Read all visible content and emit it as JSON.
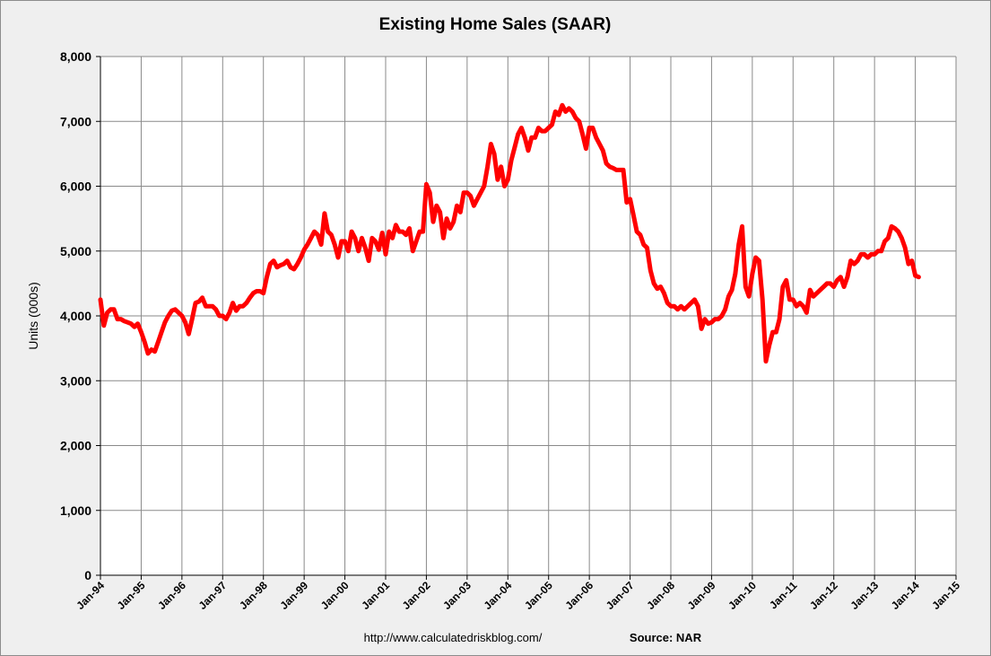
{
  "chart_data": {
    "type": "line",
    "title": "Existing Home Sales (SAAR)",
    "ylabel": "Units (000s)",
    "xlabel": "",
    "ylim": [
      0,
      8000
    ],
    "xlim": [
      "1994-01",
      "2015-01"
    ],
    "y_ticks": [
      "0",
      "1,000",
      "2,000",
      "3,000",
      "4,000",
      "5,000",
      "6,000",
      "7,000",
      "8,000"
    ],
    "x_ticks": [
      "Jan-94",
      "Jan-95",
      "Jan-96",
      "Jan-97",
      "Jan-98",
      "Jan-99",
      "Jan-00",
      "Jan-01",
      "Jan-02",
      "Jan-03",
      "Jan-04",
      "Jan-05",
      "Jan-06",
      "Jan-07",
      "Jan-08",
      "Jan-09",
      "Jan-10",
      "Jan-11",
      "Jan-12",
      "Jan-13",
      "Jan-14",
      "Jan-15"
    ],
    "grid": true,
    "line_color": "#ff0000",
    "series": [
      {
        "points": [
          [
            "1994-01",
            4250
          ],
          [
            "1994-02",
            3850
          ],
          [
            "1994-03",
            4050
          ],
          [
            "1994-04",
            4100
          ],
          [
            "1994-05",
            4100
          ],
          [
            "1994-06",
            3950
          ],
          [
            "1994-07",
            3950
          ],
          [
            "1994-08",
            3920
          ],
          [
            "1994-09",
            3900
          ],
          [
            "1994-10",
            3880
          ],
          [
            "1994-11",
            3830
          ],
          [
            "1994-12",
            3880
          ],
          [
            "1995-01",
            3750
          ],
          [
            "1995-02",
            3600
          ],
          [
            "1995-03",
            3420
          ],
          [
            "1995-04",
            3480
          ],
          [
            "1995-05",
            3450
          ],
          [
            "1995-06",
            3600
          ],
          [
            "1995-07",
            3750
          ],
          [
            "1995-08",
            3900
          ],
          [
            "1995-09",
            4000
          ],
          [
            "1995-10",
            4080
          ],
          [
            "1995-11",
            4100
          ],
          [
            "1995-12",
            4050
          ],
          [
            "1996-01",
            4000
          ],
          [
            "1996-02",
            3900
          ],
          [
            "1996-03",
            3720
          ],
          [
            "1996-04",
            3950
          ],
          [
            "1996-05",
            4200
          ],
          [
            "1996-06",
            4220
          ],
          [
            "1996-07",
            4280
          ],
          [
            "1996-08",
            4150
          ],
          [
            "1996-09",
            4150
          ],
          [
            "1996-10",
            4150
          ],
          [
            "1996-11",
            4100
          ],
          [
            "1996-12",
            4000
          ],
          [
            "1997-01",
            4000
          ],
          [
            "1997-02",
            3950
          ],
          [
            "1997-03",
            4050
          ],
          [
            "1997-04",
            4200
          ],
          [
            "1997-05",
            4080
          ],
          [
            "1997-06",
            4150
          ],
          [
            "1997-07",
            4150
          ],
          [
            "1997-08",
            4200
          ],
          [
            "1997-09",
            4280
          ],
          [
            "1997-10",
            4350
          ],
          [
            "1997-11",
            4380
          ],
          [
            "1997-12",
            4380
          ],
          [
            "1998-01",
            4350
          ],
          [
            "1998-02",
            4600
          ],
          [
            "1998-03",
            4800
          ],
          [
            "1998-04",
            4850
          ],
          [
            "1998-05",
            4750
          ],
          [
            "1998-06",
            4780
          ],
          [
            "1998-07",
            4800
          ],
          [
            "1998-08",
            4850
          ],
          [
            "1998-09",
            4750
          ],
          [
            "1998-10",
            4720
          ],
          [
            "1998-11",
            4800
          ],
          [
            "1998-12",
            4900
          ],
          [
            "1999-01",
            5020
          ],
          [
            "1999-02",
            5100
          ],
          [
            "1999-03",
            5200
          ],
          [
            "1999-04",
            5300
          ],
          [
            "1999-05",
            5250
          ],
          [
            "1999-06",
            5100
          ],
          [
            "1999-07",
            5580
          ],
          [
            "1999-08",
            5300
          ],
          [
            "1999-09",
            5250
          ],
          [
            "1999-10",
            5100
          ],
          [
            "1999-11",
            4900
          ],
          [
            "1999-12",
            5150
          ],
          [
            "2000-01",
            5150
          ],
          [
            "2000-02",
            5000
          ],
          [
            "2000-03",
            5300
          ],
          [
            "2000-04",
            5200
          ],
          [
            "2000-05",
            5000
          ],
          [
            "2000-06",
            5200
          ],
          [
            "2000-07",
            5050
          ],
          [
            "2000-08",
            4850
          ],
          [
            "2000-09",
            5200
          ],
          [
            "2000-10",
            5150
          ],
          [
            "2000-11",
            5020
          ],
          [
            "2000-12",
            5280
          ],
          [
            "2001-01",
            4950
          ],
          [
            "2001-02",
            5300
          ],
          [
            "2001-03",
            5200
          ],
          [
            "2001-04",
            5400
          ],
          [
            "2001-05",
            5300
          ],
          [
            "2001-06",
            5300
          ],
          [
            "2001-07",
            5250
          ],
          [
            "2001-08",
            5350
          ],
          [
            "2001-09",
            5000
          ],
          [
            "2001-10",
            5150
          ],
          [
            "2001-11",
            5300
          ],
          [
            "2001-12",
            5300
          ],
          [
            "2002-01",
            6030
          ],
          [
            "2002-02",
            5900
          ],
          [
            "2002-03",
            5450
          ],
          [
            "2002-04",
            5700
          ],
          [
            "2002-05",
            5600
          ],
          [
            "2002-06",
            5200
          ],
          [
            "2002-07",
            5500
          ],
          [
            "2002-08",
            5350
          ],
          [
            "2002-09",
            5450
          ],
          [
            "2002-10",
            5700
          ],
          [
            "2002-11",
            5600
          ],
          [
            "2002-12",
            5900
          ],
          [
            "2003-01",
            5900
          ],
          [
            "2003-02",
            5850
          ],
          [
            "2003-03",
            5700
          ],
          [
            "2003-04",
            5800
          ],
          [
            "2003-05",
            5900
          ],
          [
            "2003-06",
            6000
          ],
          [
            "2003-07",
            6300
          ],
          [
            "2003-08",
            6650
          ],
          [
            "2003-09",
            6500
          ],
          [
            "2003-10",
            6100
          ],
          [
            "2003-11",
            6300
          ],
          [
            "2003-12",
            6000
          ],
          [
            "2004-01",
            6100
          ],
          [
            "2004-02",
            6400
          ],
          [
            "2004-03",
            6600
          ],
          [
            "2004-04",
            6800
          ],
          [
            "2004-05",
            6900
          ],
          [
            "2004-06",
            6750
          ],
          [
            "2004-07",
            6550
          ],
          [
            "2004-08",
            6750
          ],
          [
            "2004-09",
            6750
          ],
          [
            "2004-10",
            6900
          ],
          [
            "2004-11",
            6850
          ],
          [
            "2004-12",
            6850
          ],
          [
            "2005-01",
            6900
          ],
          [
            "2005-02",
            6950
          ],
          [
            "2005-03",
            7150
          ],
          [
            "2005-04",
            7100
          ],
          [
            "2005-05",
            7250
          ],
          [
            "2005-06",
            7150
          ],
          [
            "2005-07",
            7200
          ],
          [
            "2005-08",
            7150
          ],
          [
            "2005-09",
            7050
          ],
          [
            "2005-10",
            7000
          ],
          [
            "2005-11",
            6800
          ],
          [
            "2005-12",
            6580
          ],
          [
            "2006-01",
            6900
          ],
          [
            "2006-02",
            6900
          ],
          [
            "2006-03",
            6750
          ],
          [
            "2006-04",
            6650
          ],
          [
            "2006-05",
            6550
          ],
          [
            "2006-06",
            6350
          ],
          [
            "2006-07",
            6300
          ],
          [
            "2006-08",
            6280
          ],
          [
            "2006-09",
            6250
          ],
          [
            "2006-10",
            6250
          ],
          [
            "2006-11",
            6250
          ],
          [
            "2006-12",
            5750
          ],
          [
            "2007-01",
            5800
          ],
          [
            "2007-02",
            5550
          ],
          [
            "2007-03",
            5300
          ],
          [
            "2007-04",
            5250
          ],
          [
            "2007-05",
            5100
          ],
          [
            "2007-06",
            5050
          ],
          [
            "2007-07",
            4700
          ],
          [
            "2007-08",
            4500
          ],
          [
            "2007-09",
            4420
          ],
          [
            "2007-10",
            4450
          ],
          [
            "2007-11",
            4350
          ],
          [
            "2007-12",
            4200
          ],
          [
            "2008-01",
            4150
          ],
          [
            "2008-02",
            4150
          ],
          [
            "2008-03",
            4100
          ],
          [
            "2008-04",
            4150
          ],
          [
            "2008-05",
            4100
          ],
          [
            "2008-06",
            4150
          ],
          [
            "2008-07",
            4200
          ],
          [
            "2008-08",
            4250
          ],
          [
            "2008-09",
            4150
          ],
          [
            "2008-10",
            3800
          ],
          [
            "2008-11",
            3950
          ],
          [
            "2008-12",
            3880
          ],
          [
            "2009-01",
            3900
          ],
          [
            "2009-02",
            3950
          ],
          [
            "2009-03",
            3950
          ],
          [
            "2009-04",
            4000
          ],
          [
            "2009-05",
            4100
          ],
          [
            "2009-06",
            4300
          ],
          [
            "2009-07",
            4400
          ],
          [
            "2009-08",
            4650
          ],
          [
            "2009-09",
            5100
          ],
          [
            "2009-10",
            5380
          ],
          [
            "2009-11",
            4450
          ],
          [
            "2009-12",
            4300
          ],
          [
            "2010-01",
            4650
          ],
          [
            "2010-02",
            4900
          ],
          [
            "2010-03",
            4850
          ],
          [
            "2010-04",
            4250
          ],
          [
            "2010-05",
            3300
          ],
          [
            "2010-06",
            3550
          ],
          [
            "2010-07",
            3750
          ],
          [
            "2010-08",
            3750
          ],
          [
            "2010-09",
            3950
          ],
          [
            "2010-10",
            4450
          ],
          [
            "2010-11",
            4550
          ],
          [
            "2010-12",
            4250
          ],
          [
            "2011-01",
            4250
          ],
          [
            "2011-02",
            4150
          ],
          [
            "2011-03",
            4200
          ],
          [
            "2011-04",
            4150
          ],
          [
            "2011-05",
            4050
          ],
          [
            "2011-06",
            4400
          ],
          [
            "2011-07",
            4300
          ],
          [
            "2011-08",
            4350
          ],
          [
            "2011-09",
            4400
          ],
          [
            "2011-10",
            4450
          ],
          [
            "2011-11",
            4500
          ],
          [
            "2011-12",
            4500
          ],
          [
            "2012-01",
            4450
          ],
          [
            "2012-02",
            4550
          ],
          [
            "2012-03",
            4600
          ],
          [
            "2012-04",
            4450
          ],
          [
            "2012-05",
            4600
          ],
          [
            "2012-06",
            4850
          ],
          [
            "2012-07",
            4800
          ],
          [
            "2012-08",
            4850
          ],
          [
            "2012-09",
            4950
          ],
          [
            "2012-10",
            4950
          ],
          [
            "2012-11",
            4900
          ],
          [
            "2012-12",
            4950
          ],
          [
            "2013-01",
            4950
          ],
          [
            "2013-02",
            5000
          ],
          [
            "2013-03",
            5000
          ],
          [
            "2013-04",
            5150
          ],
          [
            "2013-05",
            5200
          ],
          [
            "2013-06",
            5380
          ],
          [
            "2013-07",
            5350
          ],
          [
            "2013-08",
            5300
          ],
          [
            "2013-09",
            5200
          ],
          [
            "2013-10",
            5050
          ],
          [
            "2013-11",
            4800
          ],
          [
            "2013-12",
            4850
          ],
          [
            "2014-01",
            4620
          ],
          [
            "2014-02",
            4600
          ]
        ]
      }
    ]
  },
  "footer": {
    "url": "http://www.calculatedriskblog.com/",
    "source": "Source: NAR"
  }
}
